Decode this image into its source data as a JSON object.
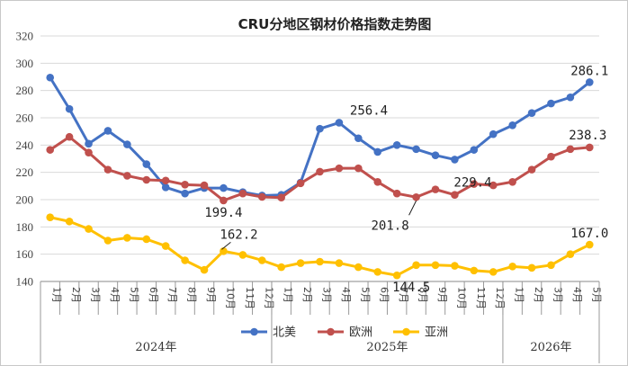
{
  "chart_data": {
    "type": "line",
    "title": "CRU分地区钢材价格指数走势图",
    "ylim": [
      140,
      320
    ],
    "yticks": [
      140,
      160,
      180,
      200,
      220,
      240,
      260,
      280,
      300,
      320
    ],
    "categories": [
      "1月",
      "2月",
      "3月",
      "4月",
      "5月",
      "6月",
      "7月",
      "8月",
      "9月",
      "10月",
      "11月",
      "12月",
      "1月",
      "2月",
      "3月",
      "4月",
      "5月",
      "6月",
      "7月",
      "8月",
      "9月",
      "10月",
      "11月",
      "12月",
      "1月",
      "2月",
      "3月",
      "4月",
      "5月"
    ],
    "year_groups": [
      {
        "label": "2024年",
        "count": 12
      },
      {
        "label": "2025年",
        "count": 12
      },
      {
        "label": "2026年",
        "count": 5
      }
    ],
    "grid": "horizontal",
    "legend_position": "bottom",
    "series": [
      {
        "name": "北美",
        "color": "#4472C4",
        "values": [
          289.5,
          266.5,
          241.0,
          250.5,
          240.5,
          226.0,
          209.0,
          204.5,
          208.5,
          208.5,
          205.5,
          203.0,
          203.5,
          212.5,
          252.0,
          256.4,
          245.0,
          235.0,
          240.0,
          237.0,
          232.5,
          229.4,
          236.5,
          248.0,
          254.5,
          263.5,
          270.5,
          275.0,
          286.1
        ]
      },
      {
        "name": "欧洲",
        "color": "#C0504D",
        "values": [
          236.5,
          246.0,
          234.5,
          222.0,
          217.5,
          214.5,
          214.0,
          211.0,
          210.5,
          199.4,
          204.5,
          202.0,
          201.5,
          212.0,
          220.5,
          223.0,
          223.0,
          213.0,
          204.5,
          201.8,
          207.5,
          203.5,
          211.5,
          210.5,
          213.0,
          222.0,
          231.5,
          237.0,
          238.3
        ]
      },
      {
        "name": "亚洲",
        "color": "#FFC000",
        "values": [
          187.0,
          184.0,
          178.5,
          170.0,
          172.0,
          171.0,
          166.0,
          155.5,
          148.5,
          162.2,
          159.5,
          155.5,
          150.5,
          153.5,
          154.5,
          153.5,
          150.5,
          147.0,
          144.5,
          152.0,
          152.0,
          151.5,
          148.0,
          147.0,
          151.0,
          150.0,
          152.0,
          160.0,
          167.0
        ]
      }
    ],
    "annotations": [
      {
        "text": "286.1",
        "series": 0,
        "index": 28
      },
      {
        "text": "256.4",
        "series": 0,
        "index": 15
      },
      {
        "text": "229.4",
        "series": 0,
        "index": 21
      },
      {
        "text": "238.3",
        "series": 1,
        "index": 28
      },
      {
        "text": "199.4",
        "series": 1,
        "index": 9
      },
      {
        "text": "201.8",
        "series": 1,
        "index": 19
      },
      {
        "text": "162.2",
        "series": 2,
        "index": 9
      },
      {
        "text": "144.5",
        "series": 2,
        "index": 18
      },
      {
        "text": "167.0",
        "series": 2,
        "index": 28
      }
    ]
  }
}
